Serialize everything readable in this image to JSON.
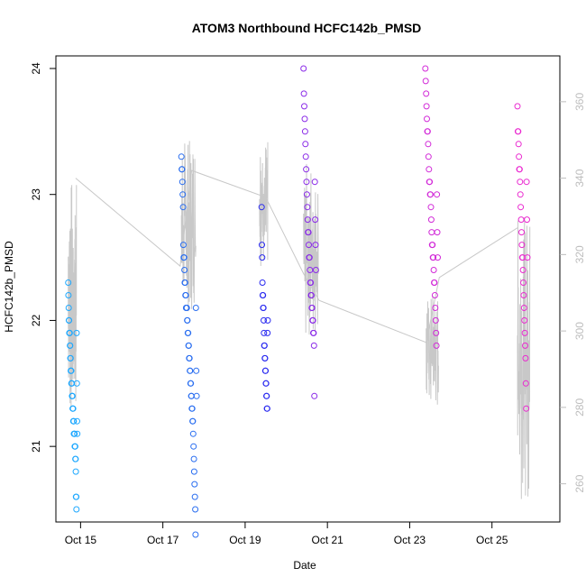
{
  "chart_data": {
    "type": "scatter",
    "title": "ATOM3 Northbound HCFC142b_PMSD",
    "xlabel": "Date",
    "ylabel": "HCFC142b_PMSD",
    "xlim_days": [
      14.4,
      26.65
    ],
    "ylim": [
      20.4,
      24.1
    ],
    "x_ticks": [
      {
        "day": 15,
        "label": "Oct 15"
      },
      {
        "day": 17,
        "label": "Oct 17"
      },
      {
        "day": 19,
        "label": "Oct 19"
      },
      {
        "day": 21,
        "label": "Oct 21"
      },
      {
        "day": 23,
        "label": "Oct 23"
      },
      {
        "day": 25,
        "label": "Oct 25"
      }
    ],
    "y_ticks": [
      21,
      22,
      23,
      24
    ],
    "secondary_axis": {
      "description": "grey line series (second variable, right axis)",
      "ylim": [
        250,
        372
      ],
      "ticks": [
        260,
        280,
        300,
        320,
        340,
        360
      ],
      "color": "#c8c8c8"
    },
    "flights": [
      {
        "day_start": 14.7,
        "day_end": 14.92,
        "color": "#1ea8ff",
        "values": [
          22.3,
          22.2,
          22.1,
          22.0,
          22.0,
          21.9,
          21.9,
          21.9,
          21.8,
          21.8,
          21.7,
          21.7,
          21.6,
          21.6,
          21.6,
          21.5,
          21.5,
          21.5,
          21.4,
          21.4,
          21.4,
          21.3,
          21.3,
          21.3,
          21.2,
          21.2,
          21.2,
          21.1,
          21.1,
          21.1,
          21.1,
          21.0,
          21.0,
          21.0,
          20.9,
          20.9,
          20.8,
          20.6,
          20.6,
          20.5,
          21.9,
          21.5,
          21.2,
          21.1
        ]
      },
      {
        "day_start": 17.45,
        "day_end": 17.82,
        "color": "#2a6ef0",
        "values": [
          23.3,
          23.2,
          23.2,
          23.1,
          23.0,
          22.9,
          22.6,
          22.5,
          22.5,
          22.4,
          22.3,
          22.3,
          22.2,
          22.2,
          22.1,
          22.1,
          22.1,
          22.0,
          22.0,
          21.9,
          21.9,
          21.8,
          21.8,
          21.7,
          21.7,
          21.6,
          21.6,
          21.5,
          21.5,
          21.4,
          21.4,
          21.3,
          21.3,
          21.2,
          21.2,
          21.1,
          21.0,
          20.9,
          20.8,
          20.7,
          20.6,
          20.5,
          20.3,
          22.1,
          21.6,
          21.4
        ]
      },
      {
        "day_start": 19.4,
        "day_end": 19.55,
        "color": "#2a2af0",
        "values": [
          22.9,
          22.6,
          22.5,
          22.3,
          22.2,
          22.2,
          22.1,
          22.1,
          22.0,
          21.9,
          21.8,
          21.8,
          21.7,
          21.7,
          21.6,
          21.6,
          21.5,
          21.5,
          21.4,
          21.4,
          21.3,
          21.3,
          21.9,
          22.0
        ]
      },
      {
        "day_start": 20.42,
        "day_end": 20.72,
        "color": "#8a2ae8",
        "values": [
          24.0,
          23.8,
          23.7,
          23.6,
          23.5,
          23.4,
          23.3,
          23.2,
          23.1,
          23.0,
          22.9,
          22.8,
          22.7,
          22.7,
          22.6,
          22.5,
          22.5,
          22.4,
          22.3,
          22.3,
          22.2,
          22.2,
          22.1,
          22.1,
          22.0,
          22.0,
          21.9,
          21.9,
          21.8,
          21.4,
          23.1,
          22.8,
          22.6,
          22.4
        ]
      },
      {
        "day_start": 23.38,
        "day_end": 23.68,
        "color": "#d22ad8",
        "values": [
          24.0,
          23.9,
          23.8,
          23.7,
          23.6,
          23.5,
          23.5,
          23.4,
          23.3,
          23.2,
          23.1,
          23.1,
          23.0,
          23.0,
          22.9,
          22.8,
          22.7,
          22.6,
          22.6,
          22.5,
          22.5,
          22.4,
          22.3,
          22.3,
          22.2,
          22.1,
          22.0,
          21.9,
          21.8,
          23.0,
          22.7,
          22.5
        ]
      },
      {
        "day_start": 25.62,
        "day_end": 25.86,
        "color": "#ea2ad0",
        "values": [
          23.7,
          23.5,
          23.5,
          23.4,
          23.3,
          23.2,
          23.2,
          23.1,
          23.0,
          22.9,
          22.8,
          22.7,
          22.6,
          22.5,
          22.5,
          22.4,
          22.3,
          22.2,
          22.1,
          22.0,
          21.9,
          21.8,
          21.7,
          21.5,
          21.3,
          23.1,
          22.8,
          22.5
        ]
      }
    ],
    "secondary_series": {
      "color": "#c8c8c8",
      "connector_points": [
        {
          "day": 14.88,
          "value": 340
        },
        {
          "day": 17.42,
          "value": 317
        },
        {
          "day": 17.7,
          "value": 342
        },
        {
          "day": 19.5,
          "value": 335
        },
        {
          "day": 20.42,
          "value": 315
        },
        {
          "day": 20.8,
          "value": 308
        },
        {
          "day": 23.4,
          "value": 297
        },
        {
          "day": 23.72,
          "value": 314
        },
        {
          "day": 25.62,
          "value": 327
        }
      ],
      "flight_bands": [
        {
          "day_start": 14.7,
          "day_end": 14.9,
          "low": 278,
          "high": 340
        },
        {
          "day_start": 17.45,
          "day_end": 17.8,
          "low": 305,
          "high": 350
        },
        {
          "day_start": 19.35,
          "day_end": 19.55,
          "low": 317,
          "high": 350
        },
        {
          "day_start": 20.42,
          "day_end": 20.78,
          "low": 298,
          "high": 344
        },
        {
          "day_start": 23.4,
          "day_end": 23.7,
          "low": 279,
          "high": 310
        },
        {
          "day_start": 25.62,
          "day_end": 25.92,
          "low": 256,
          "high": 330
        }
      ]
    }
  }
}
